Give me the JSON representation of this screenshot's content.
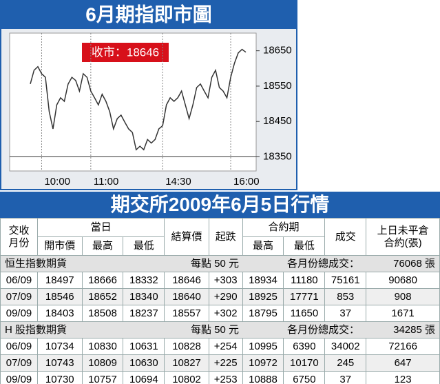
{
  "chart_data": {
    "type": "line",
    "title": "6月期指即市圖",
    "annotation": "收市：18646",
    "categories": [
      null,
      null,
      null,
      "10:00",
      null,
      null,
      null,
      null,
      null,
      null,
      null,
      null,
      null,
      null,
      null,
      null,
      "11:00",
      null,
      null,
      null,
      null,
      null,
      null,
      null,
      null,
      null,
      null,
      null,
      null,
      null,
      null,
      null,
      null,
      null,
      null,
      "14:30",
      null,
      null,
      null,
      null,
      null,
      null,
      null,
      null,
      null,
      null,
      null,
      null,
      null,
      null,
      null,
      null,
      null,
      "16:00",
      null,
      null,
      null,
      null
    ],
    "series": [
      {
        "color": "#333333",
        "values": [
          18556,
          18595,
          18605,
          18585,
          18575,
          18478,
          18429,
          18497,
          18517,
          18507,
          18556,
          18575,
          18566,
          18536,
          18585,
          18575,
          18536,
          18517,
          18497,
          18527,
          18507,
          18478,
          18429,
          18458,
          18468,
          18448,
          18429,
          18419,
          18370,
          18380,
          18370,
          18399,
          18389,
          18399,
          18429,
          18438,
          18497,
          18517,
          18507,
          18517,
          18536,
          18497,
          18458,
          18497,
          18546,
          18556,
          18536,
          18517,
          18575,
          18595,
          18546,
          18536,
          18517,
          18575,
          18615,
          18644,
          18654,
          18646
        ]
      }
    ],
    "ylim": [
      18310,
      18700
    ],
    "yticks": [
      18350,
      18450,
      18550,
      18650
    ],
    "axis_side": "right"
  },
  "table": {
    "title": "期交所2009年6月5日行情",
    "header_top": [
      "交收\n月份",
      "當日",
      "結算價",
      "起跌",
      "合約期",
      "成交",
      "上日未平倉\n合約(張)"
    ],
    "header_sub": [
      "開市價",
      "最高",
      "最低",
      "最高",
      "最低"
    ],
    "sections": [
      {
        "name": "恒生指數期貨",
        "unit": "每點 50 元",
        "total_label": "各月份總成交：",
        "total": "76068 張",
        "rows": [
          [
            "06/09",
            "18497",
            "18666",
            "18332",
            "18646",
            "+303",
            "18934",
            "11180",
            "75161",
            "90680"
          ],
          [
            "07/09",
            "18546",
            "18652",
            "18340",
            "18640",
            "+290",
            "18925",
            "17771",
            "853",
            "908"
          ],
          [
            "09/09",
            "18403",
            "18508",
            "18237",
            "18557",
            "+302",
            "18795",
            "11650",
            "37",
            "1671"
          ]
        ]
      },
      {
        "name": "H 股指數期貨",
        "unit": "每點 50 元",
        "total_label": "各月份總成交：",
        "total": "34285 張",
        "rows": [
          [
            "06/09",
            "10734",
            "10830",
            "10631",
            "10828",
            "+254",
            "10995",
            "6390",
            "34002",
            "72166"
          ],
          [
            "07/09",
            "10743",
            "10809",
            "10630",
            "10827",
            "+225",
            "10972",
            "10170",
            "245",
            "647"
          ],
          [
            "09/09",
            "10730",
            "10757",
            "10694",
            "10802",
            "+253",
            "10888",
            "6750",
            "37",
            "123"
          ]
        ]
      }
    ]
  }
}
